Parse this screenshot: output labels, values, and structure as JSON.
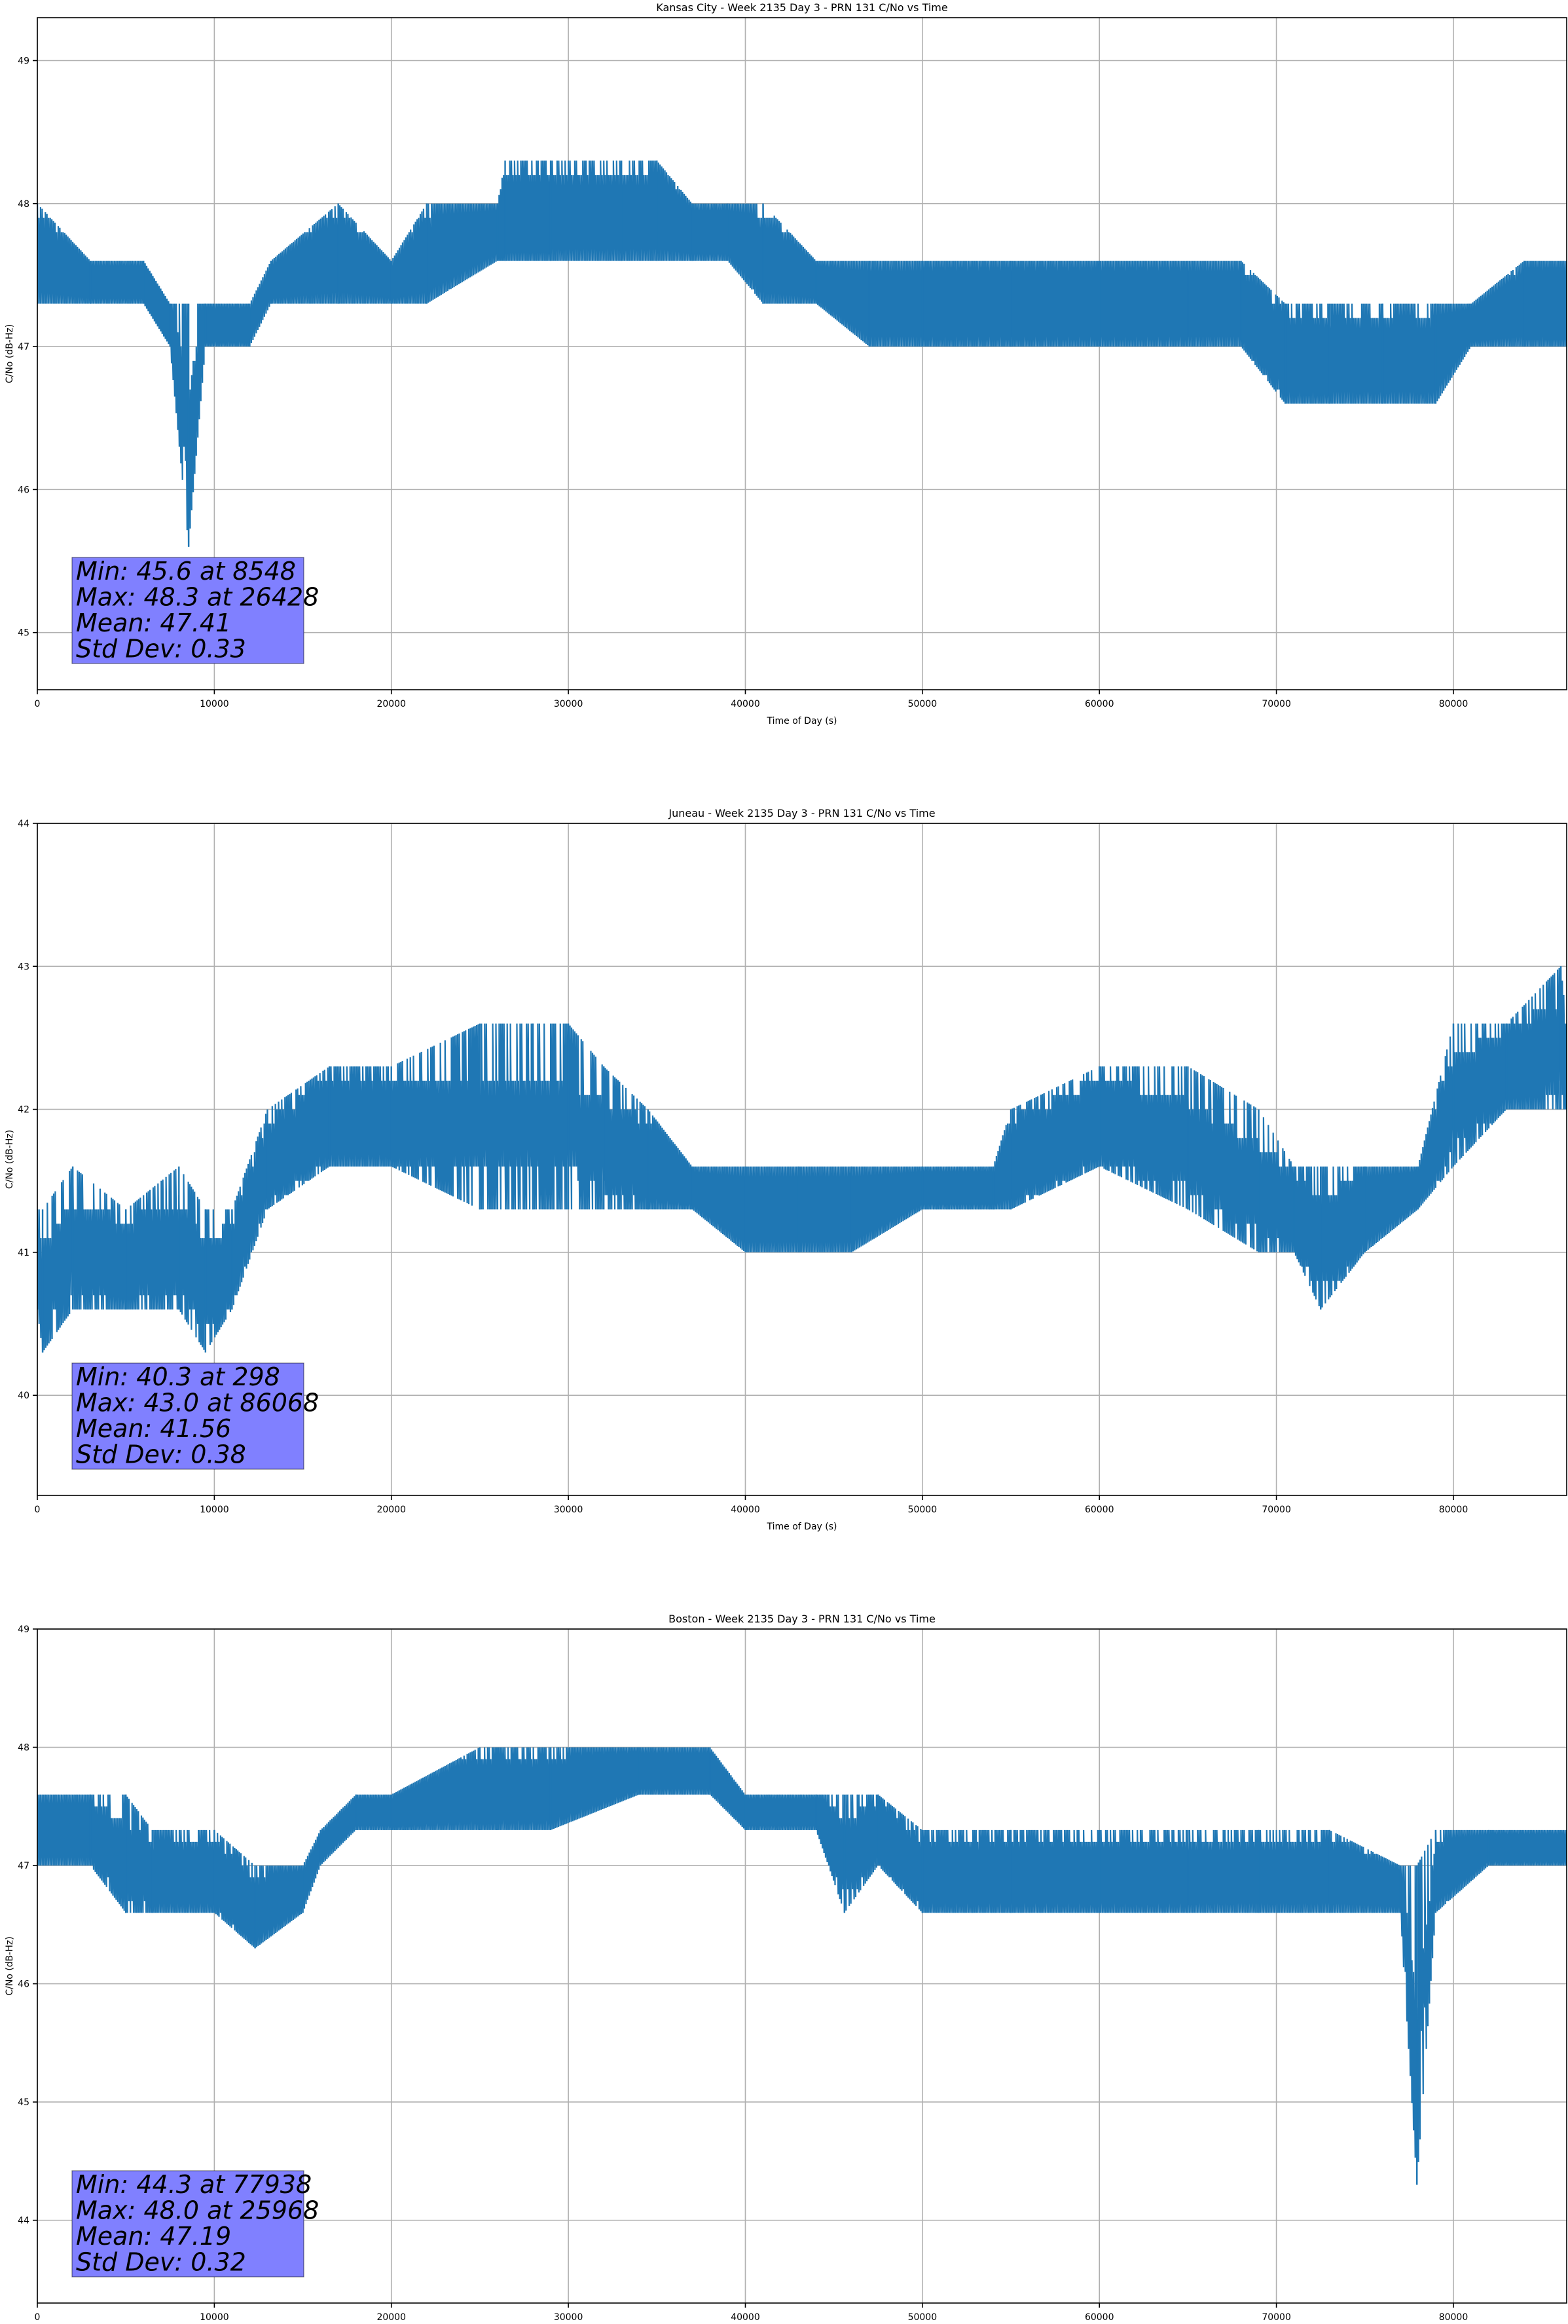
{
  "figure": {
    "line_color": "#1f77b4",
    "box_color": "#8080ff",
    "grid": true
  },
  "chart_data": [
    {
      "type": "line",
      "title": "Kansas City - Week 2135 Day 3 - PRN 131 C/No vs Time",
      "xlabel": "Time of Day (s)",
      "ylabel": "C/No (dB-Hz)",
      "xlim": [
        0,
        86400
      ],
      "ylim": [
        44.6,
        49.3
      ],
      "xticks": [
        0,
        10000,
        20000,
        30000,
        40000,
        50000,
        60000,
        70000,
        80000
      ],
      "yticks": [
        45,
        46,
        47,
        48,
        49
      ],
      "stats": [
        "Min: 45.6 at 8548",
        "Max: 48.3 at 26428",
        "Mean: 47.41",
        "Std Dev: 0.33"
      ],
      "series": [
        {
          "x": [
            0,
            3000,
            6000,
            7500,
            8548,
            9500,
            12000,
            13200,
            17000,
            20000,
            22000,
            26000,
            26428,
            29000,
            33000,
            35000,
            37000,
            39000,
            41000,
            44000,
            47000,
            50000,
            55000,
            60000,
            65000,
            68000,
            70500,
            73000,
            76000,
            79000,
            81000,
            84000,
            86400
          ],
          "lower": [
            47.3,
            47.3,
            47.3,
            47.0,
            45.6,
            47.0,
            47.0,
            47.3,
            47.3,
            47.3,
            47.3,
            47.6,
            47.6,
            47.6,
            47.6,
            47.6,
            47.6,
            47.6,
            47.3,
            47.3,
            47.0,
            47.0,
            47.0,
            47.0,
            47.0,
            47.0,
            46.6,
            46.6,
            46.6,
            46.6,
            47.0,
            47.0,
            47.0
          ],
          "upper": [
            48.0,
            47.6,
            47.6,
            47.3,
            47.3,
            47.3,
            47.3,
            47.6,
            48.0,
            47.6,
            48.0,
            48.0,
            48.3,
            48.3,
            48.3,
            48.3,
            48.0,
            48.0,
            48.0,
            47.6,
            47.6,
            47.6,
            47.6,
            47.6,
            47.6,
            47.6,
            47.3,
            47.3,
            47.3,
            47.3,
            47.3,
            47.6,
            47.6
          ]
        }
      ]
    },
    {
      "type": "line",
      "title": "Juneau - Week 2135 Day 3 - PRN 131 C/No vs Time",
      "xlabel": "Time of Day (s)",
      "ylabel": "C/No (dB-Hz)",
      "xlim": [
        0,
        86400
      ],
      "ylim": [
        39.3,
        44.0
      ],
      "xticks": [
        0,
        10000,
        20000,
        30000,
        40000,
        50000,
        60000,
        70000,
        80000
      ],
      "yticks": [
        40,
        41,
        42,
        43,
        44
      ],
      "stats": [
        "Min: 40.3 at 298",
        "Max: 43.0 at 86068",
        "Mean: 41.56",
        "Std Dev: 0.38"
      ],
      "series": [
        {
          "x": [
            0,
            298,
            2000,
            5000,
            8000,
            9500,
            11000,
            13000,
            16500,
            20000,
            25000,
            28000,
            30000,
            32000,
            34500,
            37000,
            40000,
            43000,
            46000,
            50000,
            54000,
            55000,
            60000,
            65000,
            69000,
            71000,
            72500,
            75000,
            78000,
            80000,
            83000,
            86068,
            86400
          ],
          "lower": [
            40.6,
            40.3,
            40.6,
            40.6,
            40.6,
            40.3,
            40.6,
            41.3,
            41.6,
            41.6,
            41.3,
            41.3,
            41.3,
            41.3,
            41.3,
            41.3,
            41.0,
            41.0,
            41.0,
            41.3,
            41.3,
            41.3,
            41.6,
            41.3,
            41.0,
            41.0,
            40.6,
            41.0,
            41.3,
            41.6,
            42.0,
            42.0,
            42.0
          ],
          "upper": [
            41.3,
            41.3,
            41.6,
            41.3,
            41.6,
            41.3,
            41.3,
            42.0,
            42.3,
            42.3,
            42.6,
            42.6,
            42.6,
            42.3,
            42.0,
            41.6,
            41.6,
            41.6,
            41.6,
            41.6,
            41.6,
            42.0,
            42.3,
            42.3,
            42.0,
            41.6,
            41.6,
            41.6,
            41.6,
            42.6,
            42.6,
            43.0,
            42.6
          ]
        }
      ]
    },
    {
      "type": "line",
      "title": "Boston - Week 2135 Day 3 - PRN 131 C/No vs Time",
      "xlabel": "Time of Day (s)",
      "ylabel": "C/No (dB-Hz)",
      "xlim": [
        0,
        86400
      ],
      "ylim": [
        43.3,
        49.0
      ],
      "xticks": [
        0,
        10000,
        20000,
        30000,
        40000,
        50000,
        60000,
        70000,
        80000
      ],
      "yticks": [
        44,
        45,
        46,
        47,
        48,
        49
      ],
      "stats": [
        "Min: 44.3 at 77938",
        "Max: 48.0 at 25968",
        "Mean: 47.19",
        "Std Dev: 0.32"
      ],
      "series": [
        {
          "x": [
            0,
            3000,
            5000,
            6500,
            10000,
            12300,
            15000,
            16000,
            18000,
            20000,
            25000,
            25968,
            29000,
            34000,
            38000,
            40000,
            44000,
            45600,
            47500,
            50000,
            55000,
            60000,
            65000,
            69000,
            73000,
            77000,
            77938,
            79000,
            82000,
            86400
          ],
          "lower": [
            47.0,
            47.0,
            46.6,
            46.6,
            46.6,
            46.3,
            46.6,
            47.0,
            47.3,
            47.3,
            47.3,
            47.3,
            47.3,
            47.6,
            47.6,
            47.3,
            47.3,
            46.6,
            47.0,
            46.6,
            46.6,
            46.6,
            46.6,
            46.6,
            46.6,
            46.6,
            44.3,
            46.6,
            47.0,
            47.0
          ],
          "upper": [
            47.6,
            47.6,
            47.6,
            47.3,
            47.3,
            47.0,
            47.0,
            47.3,
            47.6,
            47.6,
            48.0,
            48.0,
            48.0,
            48.0,
            48.0,
            47.6,
            47.6,
            47.6,
            47.6,
            47.3,
            47.3,
            47.3,
            47.3,
            47.3,
            47.3,
            47.0,
            47.0,
            47.3,
            47.3,
            47.3
          ]
        }
      ]
    }
  ]
}
